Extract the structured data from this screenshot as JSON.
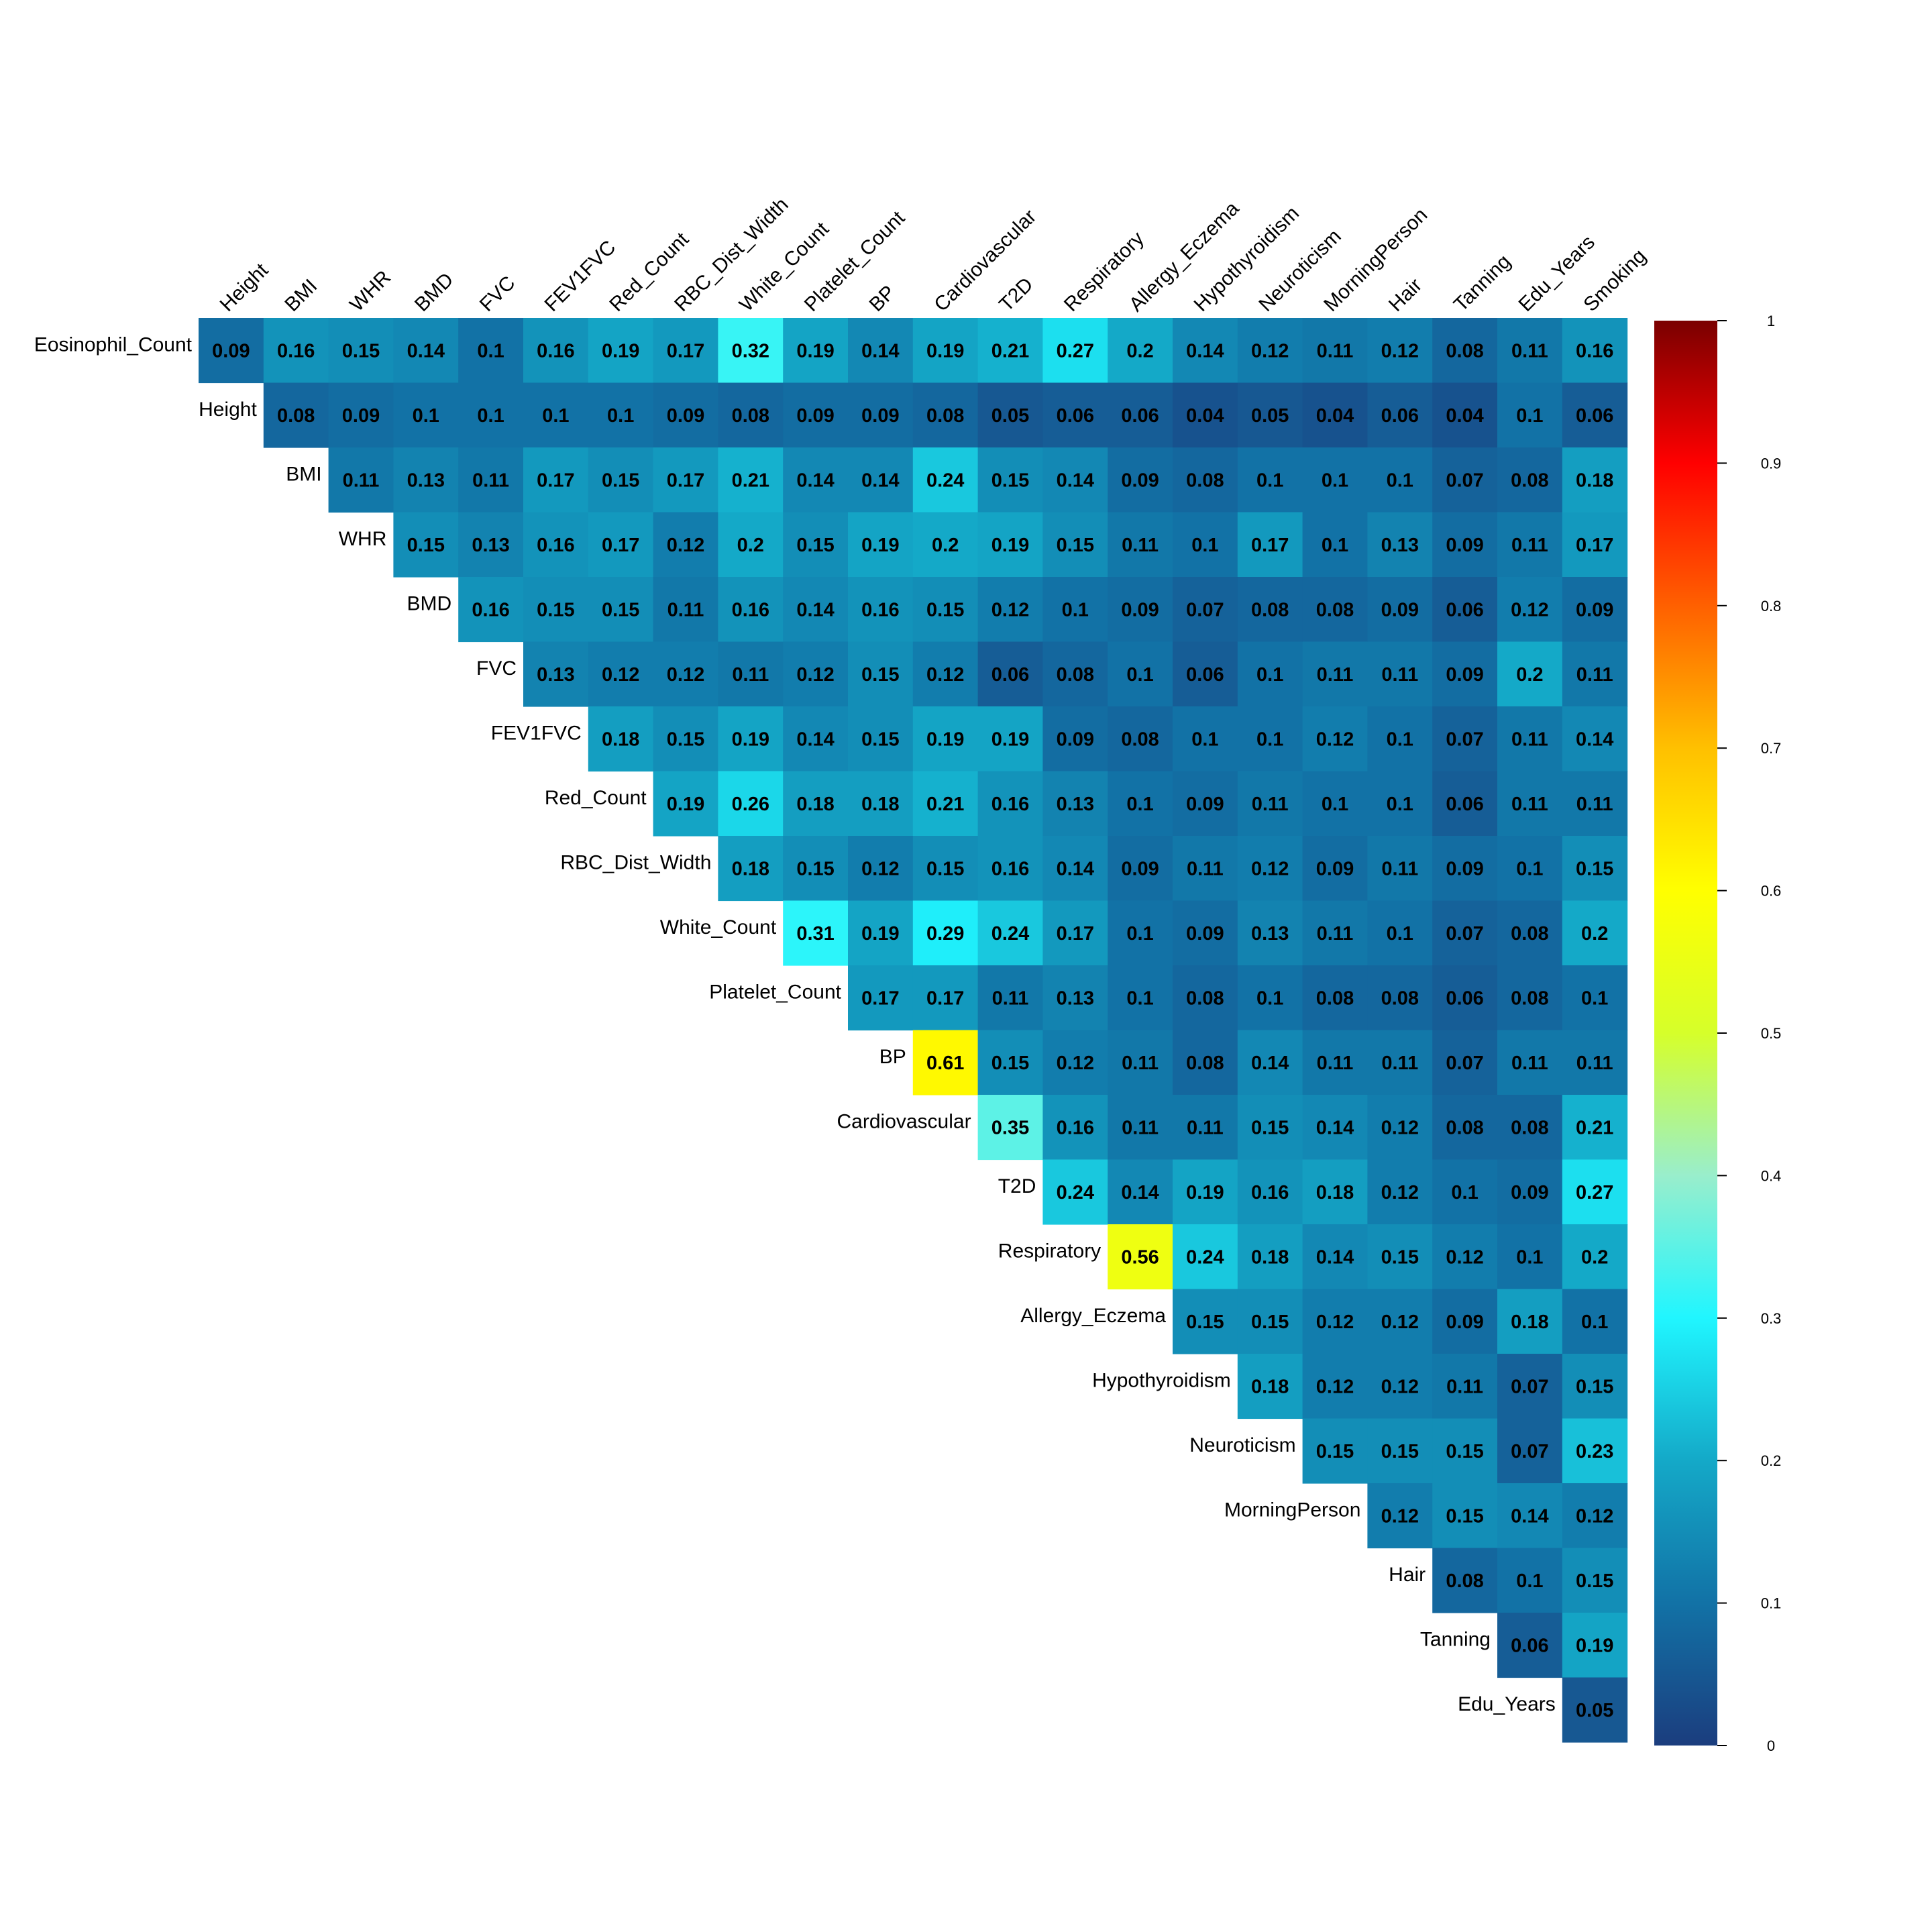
{
  "chart_data": {
    "type": "heatmap",
    "shape": "upper-triangle",
    "col_labels": [
      "Height",
      "BMI",
      "WHR",
      "BMD",
      "FVC",
      "FEV1FVC",
      "Red_Count",
      "RBC_Dist_Width",
      "White_Count",
      "Platelet_Count",
      "BP",
      "Cardiovascular",
      "T2D",
      "Respiratory",
      "Allergy_Eczema",
      "Hypothyroidism",
      "Neuroticism",
      "MorningPerson",
      "Hair",
      "Tanning",
      "Edu_Years",
      "Smoking"
    ],
    "row_labels": [
      "Eosinophil_Count",
      "Height",
      "BMI",
      "WHR",
      "BMD",
      "FVC",
      "FEV1FVC",
      "Red_Count",
      "RBC_Dist_Width",
      "White_Count",
      "Platelet_Count",
      "BP",
      "Cardiovascular",
      "T2D",
      "Respiratory",
      "Allergy_Eczema",
      "Hypothyroidism",
      "Neuroticism",
      "MorningPerson",
      "Hair",
      "Tanning",
      "Edu_Years"
    ],
    "values": [
      [
        0.09,
        0.16,
        0.15,
        0.14,
        0.1,
        0.16,
        0.19,
        0.17,
        0.32,
        0.19,
        0.14,
        0.19,
        0.21,
        0.27,
        0.2,
        0.14,
        0.12,
        0.11,
        0.12,
        0.08,
        0.11,
        0.16
      ],
      [
        0.08,
        0.09,
        0.1,
        0.1,
        0.1,
        0.1,
        0.09,
        0.08,
        0.09,
        0.09,
        0.08,
        0.05,
        0.06,
        0.06,
        0.04,
        0.05,
        0.04,
        0.06,
        0.04,
        0.1,
        0.06
      ],
      [
        0.11,
        0.13,
        0.11,
        0.17,
        0.15,
        0.17,
        0.21,
        0.14,
        0.14,
        0.24,
        0.15,
        0.14,
        0.09,
        0.08,
        0.1,
        0.1,
        0.1,
        0.07,
        0.08,
        0.18
      ],
      [
        0.15,
        0.13,
        0.16,
        0.17,
        0.12,
        0.2,
        0.15,
        0.19,
        0.2,
        0.19,
        0.15,
        0.11,
        0.1,
        0.17,
        0.1,
        0.13,
        0.09,
        0.11,
        0.17
      ],
      [
        0.16,
        0.15,
        0.15,
        0.11,
        0.16,
        0.14,
        0.16,
        0.15,
        0.12,
        0.1,
        0.09,
        0.07,
        0.08,
        0.08,
        0.09,
        0.06,
        0.12,
        0.09
      ],
      [
        0.13,
        0.12,
        0.12,
        0.11,
        0.12,
        0.15,
        0.12,
        0.06,
        0.08,
        0.1,
        0.06,
        0.1,
        0.11,
        0.11,
        0.09,
        0.2,
        0.11
      ],
      [
        0.18,
        0.15,
        0.19,
        0.14,
        0.15,
        0.19,
        0.19,
        0.09,
        0.08,
        0.1,
        0.1,
        0.12,
        0.1,
        0.07,
        0.11,
        0.14
      ],
      [
        0.19,
        0.26,
        0.18,
        0.18,
        0.21,
        0.16,
        0.13,
        0.1,
        0.09,
        0.11,
        0.1,
        0.1,
        0.06,
        0.11,
        0.11
      ],
      [
        0.18,
        0.15,
        0.12,
        0.15,
        0.16,
        0.14,
        0.09,
        0.11,
        0.12,
        0.09,
        0.11,
        0.09,
        0.1,
        0.15
      ],
      [
        0.31,
        0.19,
        0.29,
        0.24,
        0.17,
        0.1,
        0.09,
        0.13,
        0.11,
        0.1,
        0.07,
        0.08,
        0.2
      ],
      [
        0.17,
        0.17,
        0.11,
        0.13,
        0.1,
        0.08,
        0.1,
        0.08,
        0.08,
        0.06,
        0.08,
        0.1
      ],
      [
        0.61,
        0.15,
        0.12,
        0.11,
        0.08,
        0.14,
        0.11,
        0.11,
        0.07,
        0.11,
        0.11
      ],
      [
        0.35,
        0.16,
        0.11,
        0.11,
        0.15,
        0.14,
        0.12,
        0.08,
        0.08,
        0.21
      ],
      [
        0.24,
        0.14,
        0.19,
        0.16,
        0.18,
        0.12,
        0.1,
        0.09,
        0.27
      ],
      [
        0.56,
        0.24,
        0.18,
        0.14,
        0.15,
        0.12,
        0.1,
        0.2
      ],
      [
        0.15,
        0.15,
        0.12,
        0.12,
        0.09,
        0.18,
        0.1
      ],
      [
        0.18,
        0.12,
        0.12,
        0.11,
        0.07,
        0.15
      ],
      [
        0.15,
        0.15,
        0.15,
        0.07,
        0.23
      ],
      [
        0.12,
        0.15,
        0.14,
        0.12
      ],
      [
        0.08,
        0.1,
        0.15
      ],
      [
        0.06,
        0.19
      ],
      [
        0.05
      ]
    ],
    "colorbar": {
      "range": [
        0,
        1
      ],
      "ticks": [
        "0",
        "0.1",
        "0.2",
        "0.3",
        "0.4",
        "0.5",
        "0.6",
        "0.7",
        "0.8",
        "0.9",
        "1"
      ],
      "palette": [
        "#1b3d7e",
        "#1272a6",
        "#14a9c8",
        "#20f6ff",
        "#99eecc",
        "#d6ff2a",
        "#ffff00",
        "#ffc000",
        "#ff6000",
        "#ff0000",
        "#7a0000"
      ]
    }
  }
}
